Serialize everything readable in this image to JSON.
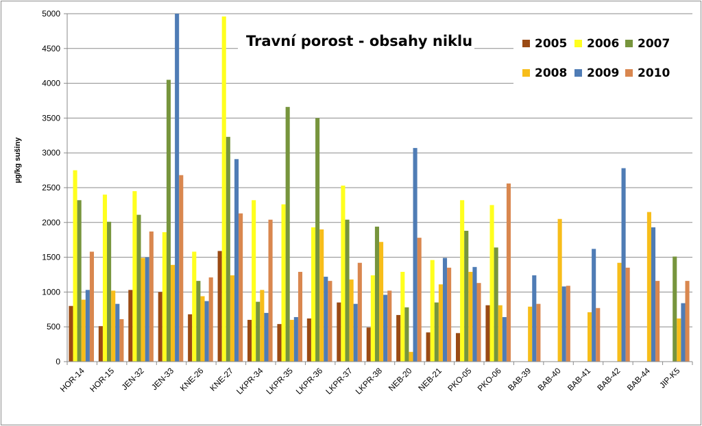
{
  "chart_data": {
    "type": "bar",
    "title": "Travní porost - obsahy  niklu",
    "ylabel": "µg/kg sušiny",
    "xlabel": "",
    "ylim": [
      0,
      5000
    ],
    "yticks": [
      0,
      500,
      1000,
      1500,
      2000,
      2500,
      3000,
      3500,
      4000,
      4500,
      5000
    ],
    "grid": true,
    "legend_position": "top-right",
    "categories": [
      "HOR-14",
      "HOR-15",
      "JEN-32",
      "JEN-33",
      "KNE-26",
      "KNE-27",
      "LKPR-34",
      "LKPR-35",
      "LKPR-36",
      "LKPR-37",
      "LKPR-38",
      "NEB-20",
      "NEB-21",
      "PKO-05",
      "PKO-06",
      "BAB-39",
      "BAB-40",
      "BAB-41",
      "BAB-42",
      "BAB-44",
      "JIP-K5"
    ],
    "series": [
      {
        "name": "2005",
        "color": "#9a4a14",
        "values": [
          800,
          510,
          1030,
          1000,
          680,
          1590,
          600,
          540,
          620,
          850,
          490,
          670,
          420,
          410,
          810,
          null,
          null,
          null,
          null,
          null,
          null
        ]
      },
      {
        "name": "2006",
        "color": "#ffff1e",
        "values": [
          2750,
          2400,
          2450,
          1860,
          1580,
          4960,
          2320,
          2260,
          1930,
          2530,
          1240,
          1290,
          1460,
          2320,
          2250,
          null,
          null,
          null,
          null,
          null,
          null
        ]
      },
      {
        "name": "2007",
        "color": "#77953d",
        "values": [
          2320,
          2010,
          2110,
          4050,
          1160,
          3230,
          860,
          3660,
          3500,
          2040,
          1940,
          780,
          850,
          1880,
          1640,
          null,
          null,
          null,
          null,
          null,
          1510
        ]
      },
      {
        "name": "2008",
        "color": "#f7bd1a",
        "values": [
          890,
          1020,
          1490,
          1390,
          940,
          1240,
          1030,
          600,
          1900,
          1180,
          1720,
          140,
          1110,
          1290,
          810,
          790,
          2050,
          710,
          1420,
          2150,
          620
        ]
      },
      {
        "name": "2009",
        "color": "#4f7cb5",
        "values": [
          1030,
          830,
          1500,
          5000,
          870,
          2910,
          700,
          640,
          1220,
          830,
          960,
          3070,
          1490,
          1360,
          640,
          1240,
          1080,
          1620,
          2780,
          1930,
          840
        ]
      },
      {
        "name": "2010",
        "color": "#d9874f",
        "values": [
          1580,
          610,
          1870,
          2680,
          1210,
          2130,
          2040,
          1290,
          1160,
          1420,
          1020,
          1780,
          1350,
          1130,
          2560,
          830,
          1090,
          770,
          1350,
          1160,
          1160
        ]
      }
    ]
  }
}
